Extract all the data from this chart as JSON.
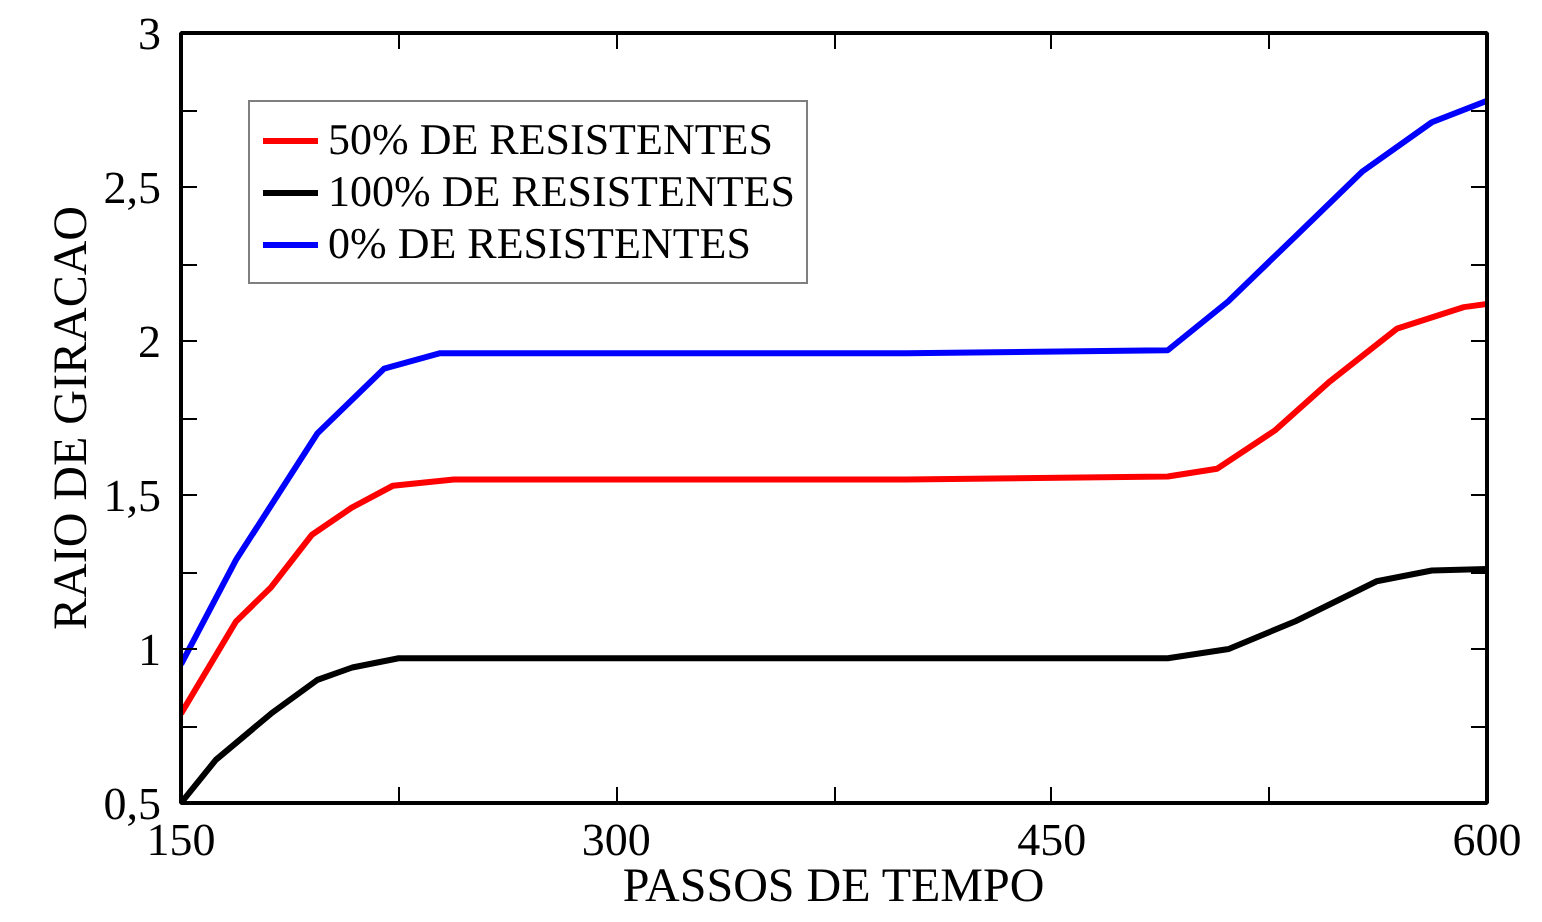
{
  "chart_data": {
    "type": "line",
    "xlabel": "PASSOS DE TEMPO",
    "ylabel": "RAIO DE GIRACAO",
    "xlim": [
      150,
      600
    ],
    "ylim": [
      0.5,
      3
    ],
    "xticks": [
      150,
      {
        "value": 225,
        "label": null
      },
      300,
      {
        "value": 375,
        "label": null
      },
      450,
      {
        "value": 525,
        "label": null
      },
      600
    ],
    "yticks": [
      {
        "value": 0.5,
        "label": "0,5"
      },
      {
        "value": 0.75,
        "label": null
      },
      1,
      {
        "value": 1.25,
        "label": null
      },
      {
        "value": 1.5,
        "label": "1,5"
      },
      {
        "value": 1.75,
        "label": null
      },
      2,
      {
        "value": 2.25,
        "label": null
      },
      {
        "value": 2.5,
        "label": "2,5"
      },
      {
        "value": 2.75,
        "label": null
      },
      3
    ],
    "grid": false,
    "legend": "top left",
    "marker": "none",
    "line_style": "solid",
    "series": [
      {
        "name": "50% DE RESISTENTES",
        "color": "#ff0000",
        "x": [
          150,
          169,
          181,
          195,
          209,
          223,
          244,
          300,
          400,
          490,
          507,
          527,
          546,
          569,
          592,
          600
        ],
        "values": [
          0.79,
          1.09,
          1.2,
          1.37,
          1.46,
          1.53,
          1.55,
          1.55,
          1.55,
          1.56,
          1.585,
          1.71,
          1.87,
          2.04,
          2.11,
          2.12
        ]
      },
      {
        "name": "100% DE RESISTENTES",
        "color": "#000000",
        "x": [
          150,
          162,
          181,
          197,
          209,
          225,
          300,
          400,
          490,
          511,
          534,
          562,
          581,
          600
        ],
        "values": [
          0.5,
          0.64,
          0.79,
          0.9,
          0.94,
          0.97,
          0.97,
          0.97,
          0.97,
          1.0,
          1.09,
          1.22,
          1.255,
          1.26
        ]
      },
      {
        "name": "0% DE RESISTENTES",
        "color": "#0000ff",
        "x": [
          150,
          169,
          197,
          220,
          239,
          300,
          400,
          490,
          511,
          534,
          557,
          581,
          600
        ],
        "values": [
          0.95,
          1.29,
          1.7,
          1.91,
          1.96,
          1.96,
          1.96,
          1.97,
          2.13,
          2.34,
          2.55,
          2.71,
          2.78
        ]
      }
    ]
  }
}
